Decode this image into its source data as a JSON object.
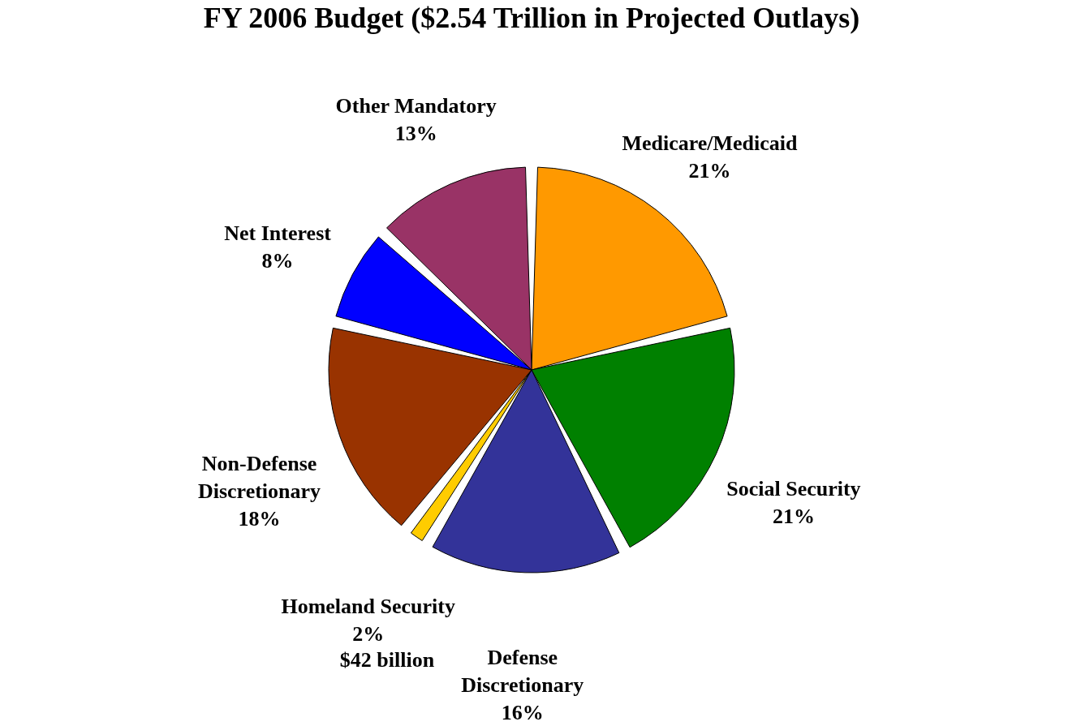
{
  "chart_data": {
    "type": "pie",
    "title": "FY 2006 Budget ($2.54 Trillion in Projected Outlays)",
    "categories": [
      "Medicare/Medicaid",
      "Social Security",
      "Defense Discretionary",
      "Homeland Security",
      "Non-Defense Discretionary",
      "Net Interest",
      "Other Mandatory"
    ],
    "values": [
      21,
      21,
      16,
      2,
      18,
      8,
      13
    ],
    "value_labels": [
      "21%",
      "21%",
      "16%",
      "2%",
      "18%",
      "8%",
      "13%"
    ],
    "colors": [
      "#ff9900",
      "#008000",
      "#333399",
      "#ffcc00",
      "#993300",
      "#0000ff",
      "#993366"
    ],
    "annotations": [
      "$42 billion"
    ],
    "legend": false
  }
}
